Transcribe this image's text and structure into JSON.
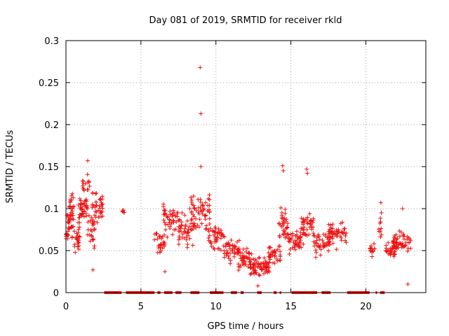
{
  "chart_data": {
    "type": "scatter",
    "title": "Day 081 of 2019, SRMTID for receiver rkld",
    "xlabel": "GPS time / hours",
    "ylabel": "SRMTID / TECUs",
    "xlim": [
      0,
      24
    ],
    "ylim": [
      0,
      0.3
    ],
    "x_ticks": [
      0,
      5,
      10,
      15,
      20
    ],
    "x_tick_labels": [
      "0",
      "5",
      "10",
      "15",
      "20"
    ],
    "y_ticks": [
      0,
      0.05,
      0.1,
      0.15,
      0.2,
      0.25,
      0.3
    ],
    "y_tick_labels": [
      "0",
      "0.05",
      "0.1",
      "0.15",
      "0.2",
      "0.25",
      "0.3"
    ],
    "grid": true,
    "marker": "+",
    "color": "#ee1111",
    "series": [
      {
        "name": "SRMTID",
        "clusters": [
          {
            "x": [
              0.0,
              0.45
            ],
            "y_center": 0.075,
            "y_spread": 0.025,
            "n": 30
          },
          {
            "x": [
              0.2,
              0.55
            ],
            "y_center": 0.1,
            "y_spread": 0.03,
            "n": 25
          },
          {
            "x": [
              0.55,
              0.95
            ],
            "y_center": 0.065,
            "y_spread": 0.025,
            "n": 25
          },
          {
            "x": [
              0.8,
              1.45
            ],
            "y_center": 0.1,
            "y_spread": 0.025,
            "n": 40
          },
          {
            "x": [
              1.1,
              1.6
            ],
            "y_center": 0.13,
            "y_spread": 0.018,
            "n": 15
          },
          {
            "x": [
              1.45,
              1.95
            ],
            "y_center": 0.075,
            "y_spread": 0.03,
            "n": 25
          },
          {
            "x": [
              1.75,
              2.45
            ],
            "y_center": 0.1,
            "y_spread": 0.025,
            "n": 40
          },
          {
            "x": [
              3.75,
              3.95
            ],
            "y_center": 0.097,
            "y_spread": 0.006,
            "n": 5
          },
          {
            "x": [
              5.9,
              6.6
            ],
            "y_center": 0.06,
            "y_spread": 0.02,
            "n": 30
          },
          {
            "x": [
              6.5,
              7.5
            ],
            "y_center": 0.085,
            "y_spread": 0.03,
            "n": 45
          },
          {
            "x": [
              7.5,
              8.6
            ],
            "y_center": 0.075,
            "y_spread": 0.028,
            "n": 50
          },
          {
            "x": [
              8.3,
              9.6
            ],
            "y_center": 0.095,
            "y_spread": 0.03,
            "n": 55
          },
          {
            "x": [
              9.5,
              10.6
            ],
            "y_center": 0.065,
            "y_spread": 0.02,
            "n": 45
          },
          {
            "x": [
              10.5,
              11.6
            ],
            "y_center": 0.05,
            "y_spread": 0.02,
            "n": 45
          },
          {
            "x": [
              11.5,
              12.4
            ],
            "y_center": 0.04,
            "y_spread": 0.018,
            "n": 45
          },
          {
            "x": [
              12.3,
              13.6
            ],
            "y_center": 0.03,
            "y_spread": 0.015,
            "n": 70
          },
          {
            "x": [
              13.5,
              14.3
            ],
            "y_center": 0.045,
            "y_spread": 0.018,
            "n": 35
          },
          {
            "x": [
              14.2,
              14.8
            ],
            "y_center": 0.08,
            "y_spread": 0.03,
            "n": 35
          },
          {
            "x": [
              14.8,
              15.8
            ],
            "y_center": 0.06,
            "y_spread": 0.02,
            "n": 45
          },
          {
            "x": [
              15.7,
              16.6
            ],
            "y_center": 0.08,
            "y_spread": 0.025,
            "n": 40
          },
          {
            "x": [
              16.5,
              17.6
            ],
            "y_center": 0.06,
            "y_spread": 0.02,
            "n": 45
          },
          {
            "x": [
              17.5,
              18.7
            ],
            "y_center": 0.07,
            "y_spread": 0.02,
            "n": 50
          },
          {
            "x": [
              20.2,
              20.6
            ],
            "y_center": 0.05,
            "y_spread": 0.012,
            "n": 15
          },
          {
            "x": [
              20.85,
              21.05
            ],
            "y_center": 0.08,
            "y_spread": 0.02,
            "n": 10
          },
          {
            "x": [
              21.3,
              22.0
            ],
            "y_center": 0.05,
            "y_spread": 0.012,
            "n": 30
          },
          {
            "x": [
              21.8,
              23.0
            ],
            "y_center": 0.06,
            "y_spread": 0.018,
            "n": 55
          }
        ],
        "outliers": [
          {
            "x": 8.95,
            "y": 0.268
          },
          {
            "x": 9.0,
            "y": 0.213
          },
          {
            "x": 9.0,
            "y": 0.15
          },
          {
            "x": 1.45,
            "y": 0.157
          },
          {
            "x": 14.45,
            "y": 0.151
          },
          {
            "x": 14.5,
            "y": 0.145
          },
          {
            "x": 16.05,
            "y": 0.147
          },
          {
            "x": 16.1,
            "y": 0.142
          },
          {
            "x": 21.0,
            "y": 0.107
          },
          {
            "x": 22.45,
            "y": 0.1
          },
          {
            "x": 22.8,
            "y": 0.01
          },
          {
            "x": 12.8,
            "y": 0.008
          },
          {
            "x": 1.8,
            "y": 0.027
          },
          {
            "x": 6.6,
            "y": 0.025
          }
        ],
        "zero_segments": [
          [
            2.55,
            3.7
          ],
          [
            4.0,
            5.9
          ],
          [
            6.1,
            6.3
          ],
          [
            6.55,
            7.1
          ],
          [
            7.3,
            7.7
          ],
          [
            8.3,
            8.9
          ],
          [
            9.6,
            10.5
          ],
          [
            11.0,
            11.4
          ],
          [
            11.65,
            11.85
          ],
          [
            12.75,
            13.05
          ],
          [
            13.85,
            14.05
          ],
          [
            14.25,
            14.35
          ],
          [
            15.05,
            16.75
          ],
          [
            17.05,
            17.65
          ],
          [
            18.75,
            20.25
          ],
          [
            20.65,
            20.75
          ],
          [
            20.95,
            21.25
          ]
        ]
      }
    ]
  }
}
